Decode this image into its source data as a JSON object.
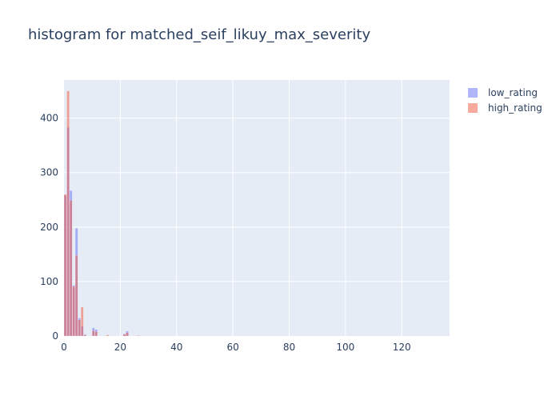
{
  "chart_data": {
    "type": "bar",
    "title": "histogram for matched_seif_likuy_max_severity",
    "xlabel": "",
    "ylabel": "",
    "xlim": [
      0,
      137
    ],
    "ylim": [
      0,
      470
    ],
    "xticks": [
      0,
      20,
      40,
      60,
      80,
      100,
      120
    ],
    "yticks": [
      0,
      100,
      200,
      300,
      400
    ],
    "grid": true,
    "legend_position": "top-right",
    "barmode": "overlay",
    "bin_width": 1,
    "series": [
      {
        "name": "low_rating",
        "color": "#636efa",
        "opacity": 0.5,
        "x": [
          0,
          1,
          2,
          3,
          4,
          5,
          6,
          7,
          10,
          11,
          15,
          21,
          22
        ],
        "values": [
          258,
          383,
          267,
          93,
          198,
          33,
          18,
          3,
          15,
          12,
          1,
          4,
          9
        ]
      },
      {
        "name": "high_rating",
        "color": "#ef553b",
        "opacity": 0.5,
        "x": [
          0,
          1,
          2,
          3,
          4,
          5,
          6,
          7,
          10,
          11,
          15,
          21,
          22,
          26
        ],
        "values": [
          260,
          450,
          249,
          91,
          148,
          30,
          53,
          2,
          10,
          8,
          2,
          3,
          6,
          1
        ]
      }
    ]
  }
}
